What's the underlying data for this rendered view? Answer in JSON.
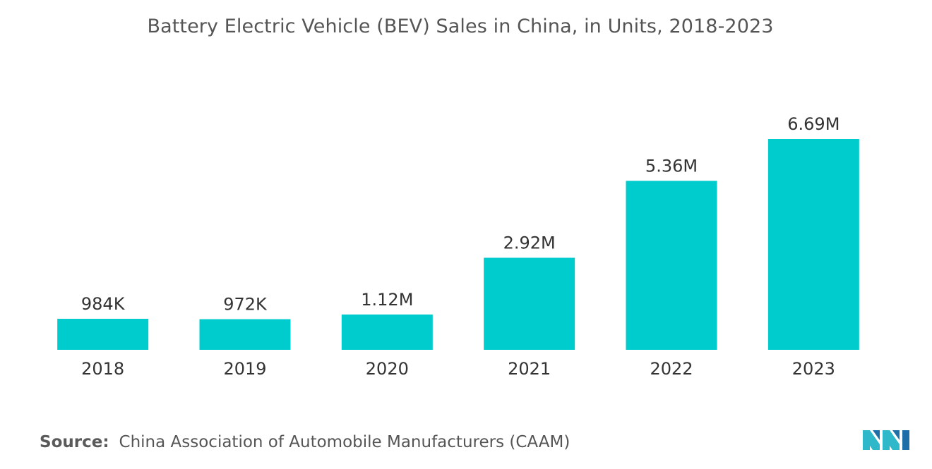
{
  "chart_data": {
    "type": "bar",
    "title": "Battery Electric Vehicle (BEV) Sales in China, in Units, 2018-2023",
    "categories": [
      "2018",
      "2019",
      "2020",
      "2021",
      "2022",
      "2023"
    ],
    "values": [
      984000,
      972000,
      1120000,
      2920000,
      5360000,
      6690000
    ],
    "data_labels": [
      "984K",
      "972K",
      "1.12M",
      "2.92M",
      "5.36M",
      "6.69M"
    ],
    "xlabel": "",
    "ylabel": "",
    "ylim": [
      0,
      7000000
    ],
    "grid": false,
    "legend": "none",
    "bar_color": "#00cccd"
  },
  "source": {
    "label": "Source:",
    "text": "China Association of Automobile Manufacturers (CAAM)"
  },
  "logo": {
    "icon": "mordor-intelligence-logo-icon",
    "colors": [
      "#2fb8c9",
      "#1e6fa8"
    ]
  }
}
